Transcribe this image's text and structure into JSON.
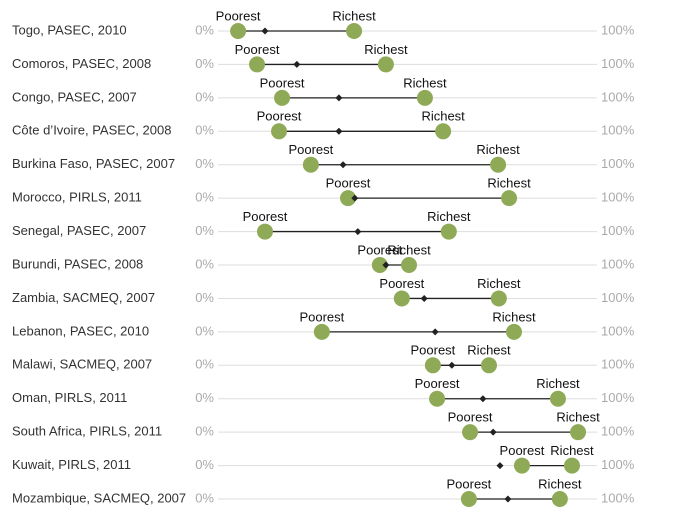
{
  "chart_data": {
    "type": "dumbbell",
    "categories": [
      "Togo, PASEC, 2010",
      "Comoros, PASEC, 2008",
      "Congo, PASEC, 2007",
      "Côte d’Ivoire, PASEC, 2008",
      "Burkina Faso, PASEC, 2007",
      "Morocco, PIRLS, 2011",
      "Senegal, PASEC, 2007",
      "Burundi, PASEC, 2008",
      "Zambia, SACMEQ, 2007",
      "Lebanon, PASEC, 2010",
      "Malawi, SACMEQ, 2007",
      "Oman, PIRLS, 2011",
      "South Africa, PIRLS, 2011",
      "Kuwait, PIRLS, 2011",
      "Mozambique, SACMEQ, 2007"
    ],
    "series": [
      {
        "name": "Poorest",
        "color": "#8faa57",
        "values": [
          5.3,
          10.3,
          16.9,
          16.1,
          24.5,
          34.3,
          12.4,
          42.7,
          48.5,
          27.4,
          56.7,
          57.8,
          66.5,
          80.2,
          66.2
        ]
      },
      {
        "color": "#222222",
        "values": [
          12.4,
          20.8,
          31.9,
          31.9,
          33.0,
          36.1,
          36.9,
          44.3,
          54.4,
          57.3,
          61.7,
          69.9,
          72.6,
          74.4,
          76.5
        ]
      },
      {
        "name": "Richest",
        "color": "#8faa57",
        "values": [
          35.9,
          44.3,
          54.6,
          59.4,
          73.9,
          76.8,
          60.9,
          50.4,
          74.1,
          78.1,
          71.5,
          89.7,
          95.0,
          93.4,
          90.2
        ]
      }
    ],
    "xlim": [
      0,
      100
    ],
    "xticks": [
      {
        "value": 0,
        "label": "0%"
      },
      {
        "value": 100,
        "label": "100%"
      }
    ]
  }
}
